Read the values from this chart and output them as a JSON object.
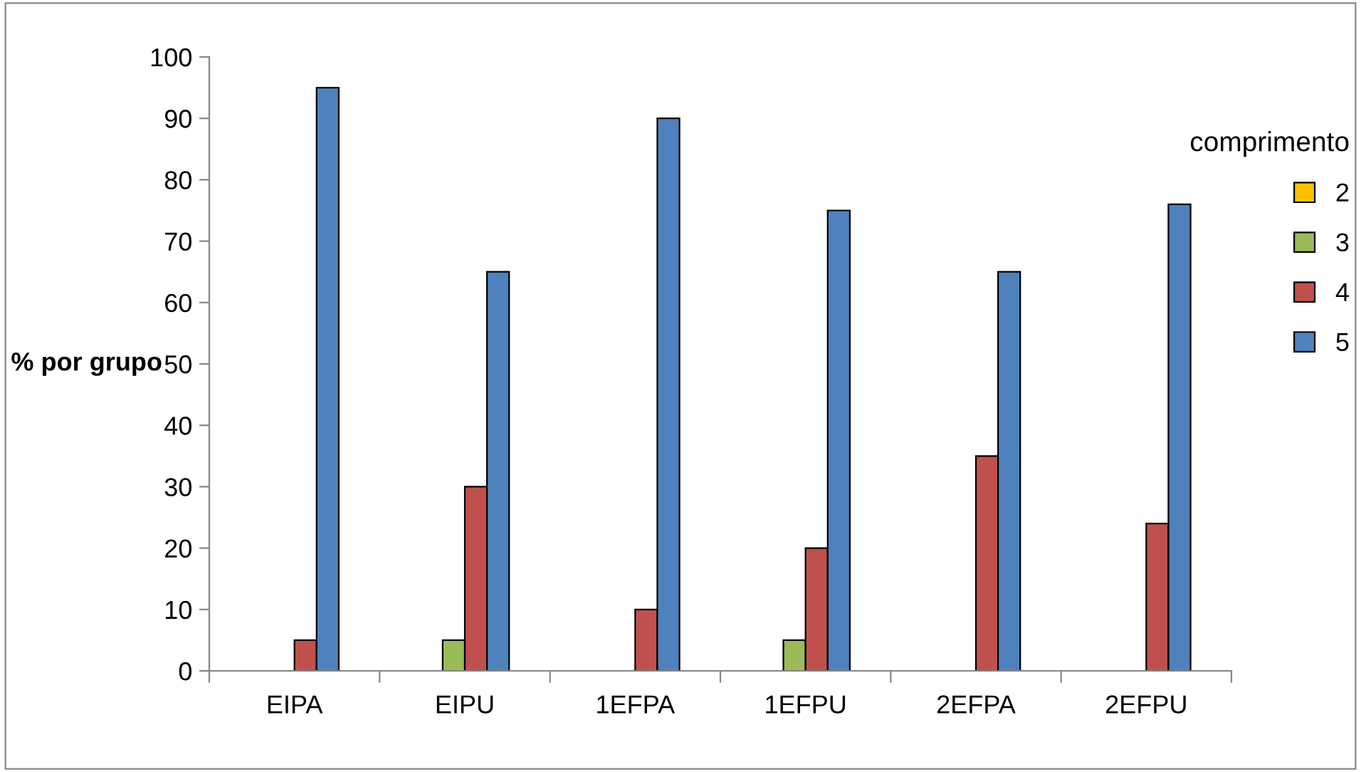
{
  "chart_data": {
    "type": "bar",
    "ylabel": "% por grupo",
    "legend_title": "comprimento",
    "categories": [
      "EIPA",
      "EIPU",
      "1EFPA",
      "1EFPU",
      "2EFPA",
      "2EFPU"
    ],
    "series": [
      {
        "name": "2",
        "color": "#ffc000",
        "values": [
          0,
          0,
          0,
          0,
          0,
          0
        ]
      },
      {
        "name": "3",
        "color": "#9bbb59",
        "values": [
          0,
          5,
          0,
          5,
          0,
          0
        ]
      },
      {
        "name": "4",
        "color": "#c0504d",
        "values": [
          5,
          30,
          10,
          20,
          35,
          24
        ]
      },
      {
        "name": "5",
        "color": "#4f81bd",
        "values": [
          95,
          65,
          90,
          75,
          65,
          76
        ]
      }
    ],
    "ylim": [
      0,
      100
    ],
    "yticks": [
      0,
      10,
      20,
      30,
      40,
      50,
      60,
      70,
      80,
      90,
      100
    ],
    "grid": false,
    "legend": "right"
  }
}
